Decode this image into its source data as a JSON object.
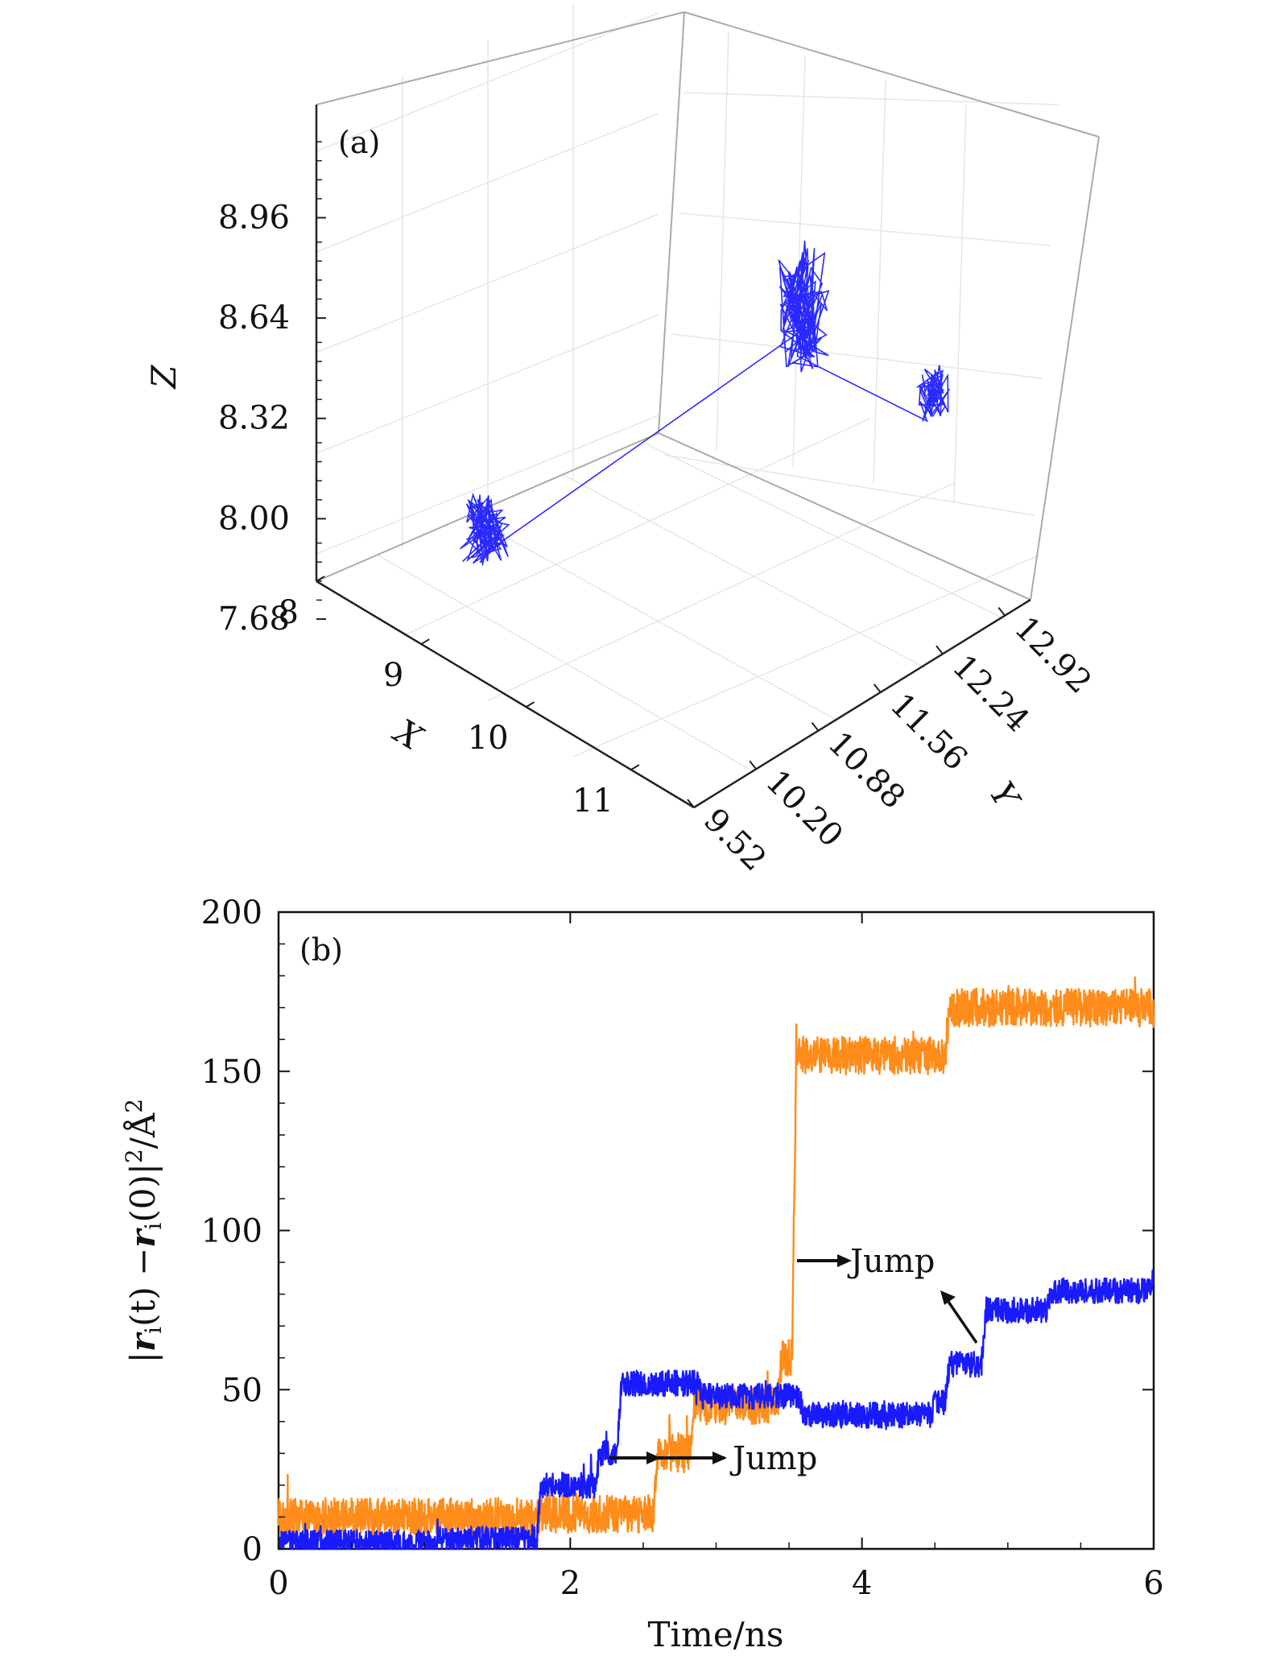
{
  "chart_data": [
    {
      "type": "line3d",
      "panel_label": "(a)",
      "xlabel": "X",
      "ylabel": "Y",
      "zlabel": "Z",
      "x_ticks": [
        "8",
        "9",
        "10",
        "11"
      ],
      "y_ticks": [
        "9.52",
        "10.20",
        "10.88",
        "11.56",
        "12.24",
        "12.92"
      ],
      "z_ticks": [
        "7.68",
        "8.00",
        "8.32",
        "8.64",
        "8.96"
      ],
      "xlim": [
        8,
        11.6
      ],
      "ylim": [
        9.52,
        13.2
      ],
      "zlim": [
        7.68,
        9.2
      ],
      "grid": true,
      "series": [
        {
          "color": "#2a2aff",
          "clusters": [
            {
              "center": [
                9.0,
                10.2,
                8.05
              ],
              "spread": [
                0.12,
                0.15,
                0.1
              ]
            },
            {
              "center": [
                10.3,
                12.2,
                8.65
              ],
              "spread": [
                0.12,
                0.18,
                0.18
              ]
            },
            {
              "center": [
                11.2,
                12.6,
                8.48
              ],
              "spread": [
                0.07,
                0.1,
                0.08
              ]
            }
          ]
        }
      ]
    },
    {
      "type": "line",
      "panel_label": "(b)",
      "xlabel": "Time/ns",
      "ylabel": "|r_i(t) − r_i(0)|²/Å²",
      "ylabel_parts": {
        "bar1": "|",
        "r1": "r",
        "sub1": "i",
        "mid": "(t) −",
        "r2": "r",
        "sub2": "i",
        "tail": "(0)|",
        "sup1": "2",
        "slash": "/Å",
        "sup2": "2"
      },
      "x_ticks": [
        "0",
        "2",
        "4",
        "6"
      ],
      "y_ticks": [
        "0",
        "50",
        "100",
        "150",
        "200"
      ],
      "xlim": [
        0,
        6
      ],
      "ylim": [
        0,
        200
      ],
      "series": [
        {
          "color": "#ff8c1a",
          "levels": [
            [
              0,
              10
            ],
            [
              1.8,
              11
            ],
            [
              2.6,
              30
            ],
            [
              2.85,
              45
            ],
            [
              3.45,
              60
            ],
            [
              3.55,
              155
            ],
            [
              4.6,
              170
            ],
            [
              6,
              168
            ]
          ],
          "noise": 6
        },
        {
          "color": "#1a1aff",
          "levels": [
            [
              0,
              2
            ],
            [
              1.1,
              3
            ],
            [
              1.8,
              20
            ],
            [
              2.2,
              30
            ],
            [
              2.35,
              52
            ],
            [
              2.9,
              48
            ],
            [
              3.4,
              48
            ],
            [
              3.6,
              42
            ],
            [
              4.5,
              46
            ],
            [
              4.6,
              58
            ],
            [
              4.85,
              75
            ],
            [
              5.3,
              81
            ],
            [
              6,
              85
            ]
          ],
          "noise": 4
        }
      ],
      "annotations": [
        {
          "text": "Jump",
          "x": 3.55,
          "y": 90
        },
        {
          "text": "Jump",
          "x": 2.3,
          "y": 27
        }
      ]
    }
  ]
}
